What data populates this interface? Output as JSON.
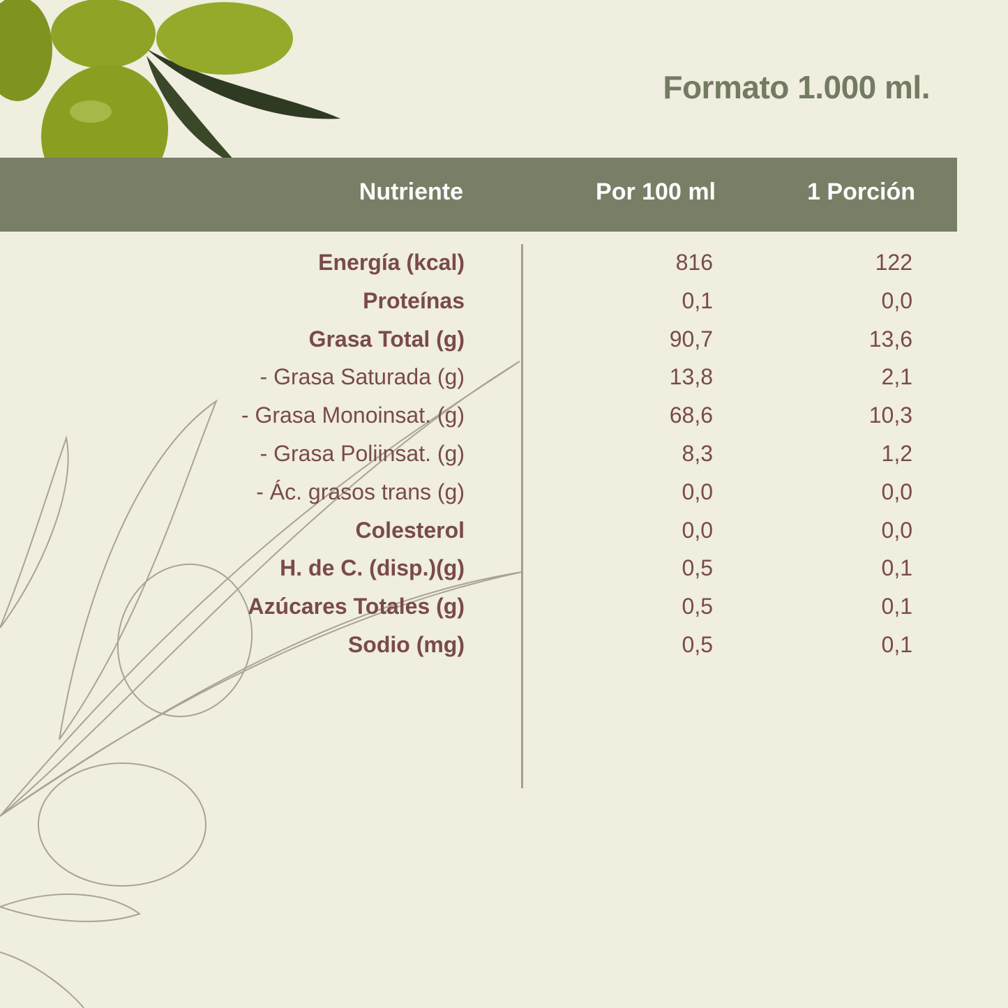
{
  "title": "Formato 1.000 ml.",
  "header": {
    "nutrient": "Nutriente",
    "per100": "Por 100 ml",
    "portion": "1 Porción"
  },
  "colors": {
    "background": "#efeedf",
    "header_bar": "#777f67",
    "title": "#737b62",
    "text": "#7a4a4a"
  },
  "rows": [
    {
      "label": "Energía (kcal)",
      "bold": true,
      "per100": "816",
      "portion": "122"
    },
    {
      "label": "Proteínas",
      "bold": true,
      "per100": "0,1",
      "portion": "0,0"
    },
    {
      "label": "Grasa Total (g)",
      "bold": true,
      "per100": "90,7",
      "portion": "13,6"
    },
    {
      "label": "- Grasa Saturada (g)",
      "bold": false,
      "per100": "13,8",
      "portion": "2,1"
    },
    {
      "label": "- Grasa Monoinsat. (g)",
      "bold": false,
      "per100": "68,6",
      "portion": "10,3"
    },
    {
      "label": "- Grasa Poliinsat. (g)",
      "bold": false,
      "per100": "8,3",
      "portion": "1,2"
    },
    {
      "label": "- Ác. grasos trans (g)",
      "bold": false,
      "per100": "0,0",
      "portion": "0,0"
    },
    {
      "label": "Colesterol",
      "bold": true,
      "per100": "0,0",
      "portion": "0,0"
    },
    {
      "label": "H. de C. (disp.)(g)",
      "bold": true,
      "per100": "0,5",
      "portion": "0,1"
    },
    {
      "label": "Azúcares Totales (g)",
      "bold": true,
      "per100": "0,5",
      "portion": "0,1"
    },
    {
      "label": "Sodio (mg)",
      "bold": true,
      "per100": "0,5",
      "portion": "0,1"
    }
  ]
}
